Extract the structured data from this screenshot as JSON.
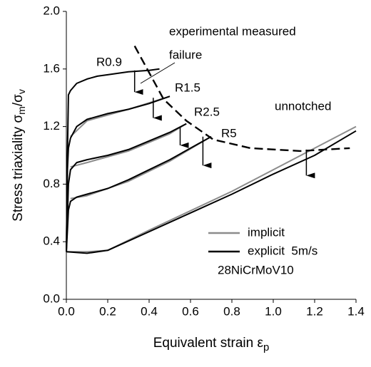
{
  "chart_data": {
    "type": "line",
    "y_label": [
      "Stress triaxiality  σ",
      "m",
      "/σ",
      "v"
    ],
    "x_label": [
      "Equivalent strain  ε",
      "p"
    ],
    "xlim": [
      0,
      1.4
    ],
    "ylim": [
      0,
      2
    ],
    "xticks": [
      {
        "value": 0,
        "label": "0.0"
      },
      0.2,
      0.4,
      0.6,
      0.8,
      {
        "value": 1,
        "label": "1.0"
      },
      1.2,
      1.4
    ],
    "yticks": [
      {
        "value": 0,
        "label": "0.0"
      },
      0.4,
      0.8,
      1.2,
      1.6,
      {
        "value": 2,
        "label": "2.0"
      }
    ],
    "legend": "lower right",
    "series": [
      {
        "name": "implicit",
        "color": "#8c8c8c",
        "x": [
          0,
          0.1,
          0.2,
          0.4,
          0.8,
          1.4
        ],
        "values": [
          0.33,
          0.33,
          0.34,
          0.48,
          0.75,
          1.2
        ]
      },
      {
        "color": "#8c8c8c",
        "x": [
          0.02,
          0.1,
          0.3,
          0.5,
          0.7
        ],
        "values": [
          0.7,
          0.72,
          0.82,
          0.96,
          1.13
        ]
      },
      {
        "color": "#8c8c8c",
        "x": [
          0.02,
          0.1,
          0.3,
          0.5,
          0.58
        ],
        "values": [
          0.92,
          0.95,
          1.03,
          1.15,
          1.22
        ]
      },
      {
        "color": "#8c8c8c",
        "x": [
          0.02,
          0.1,
          0.3,
          0.5
        ],
        "values": [
          1.13,
          1.24,
          1.32,
          1.41
        ]
      },
      {
        "name": "explicit  5m/s",
        "color": "#000000",
        "x": [
          0,
          0.1,
          0.2,
          0.4,
          0.6,
          0.8,
          1.0,
          1.2,
          1.4
        ],
        "values": [
          0.33,
          0.32,
          0.34,
          0.47,
          0.6,
          0.73,
          0.87,
          1.0,
          1.17
        ]
      },
      {
        "color": "#000000",
        "x": [
          0,
          0.01,
          0.02,
          0.05,
          0.1,
          0.2,
          0.3,
          0.4,
          0.5,
          0.6,
          0.7
        ],
        "values": [
          0.33,
          0.62,
          0.68,
          0.71,
          0.73,
          0.77,
          0.83,
          0.9,
          0.97,
          1.05,
          1.13
        ]
      },
      {
        "color": "#000000",
        "x": [
          0,
          0.01,
          0.02,
          0.05,
          0.1,
          0.2,
          0.3,
          0.4,
          0.5,
          0.58
        ],
        "values": [
          0.33,
          0.8,
          0.9,
          0.95,
          0.97,
          1.0,
          1.04,
          1.1,
          1.16,
          1.22
        ]
      },
      {
        "color": "#000000",
        "x": [
          0,
          0.005,
          0.01,
          0.02,
          0.05,
          0.1,
          0.2,
          0.3,
          0.4,
          0.5
        ],
        "values": [
          0.33,
          0.9,
          1.05,
          1.12,
          1.2,
          1.25,
          1.29,
          1.32,
          1.36,
          1.41
        ]
      },
      {
        "color": "#000000",
        "x": [
          0,
          0.005,
          0.01,
          0.02,
          0.05,
          0.1,
          0.15,
          0.2,
          0.3,
          0.4,
          0.45
        ],
        "values": [
          0.33,
          1.0,
          1.42,
          1.45,
          1.5,
          1.53,
          1.55,
          1.56,
          1.58,
          1.59,
          1.6
        ]
      }
    ],
    "failure_curve": {
      "color": "#000000",
      "x": [
        0.33,
        0.47,
        0.58,
        0.71,
        0.89,
        1.13,
        1.37
      ],
      "values": [
        1.76,
        1.39,
        1.24,
        1.11,
        1.05,
        1.03,
        1.05
      ]
    },
    "failure_arrows": [
      {
        "x": 0.33,
        "from": 1.59,
        "to": 1.44
      },
      {
        "x": 0.42,
        "from": 1.4,
        "to": 1.26
      },
      {
        "x": 0.55,
        "from": 1.2,
        "to": 1.07
      },
      {
        "x": 0.66,
        "from": 1.13,
        "to": 0.93
      },
      {
        "x": 1.16,
        "from": 1.04,
        "to": 0.86
      }
    ],
    "annotations": [
      "experimental measured",
      "failure",
      "R0.9",
      "R1.5",
      "R2.5",
      "R5",
      "unnotched",
      "28NiCrMoV10"
    ]
  }
}
